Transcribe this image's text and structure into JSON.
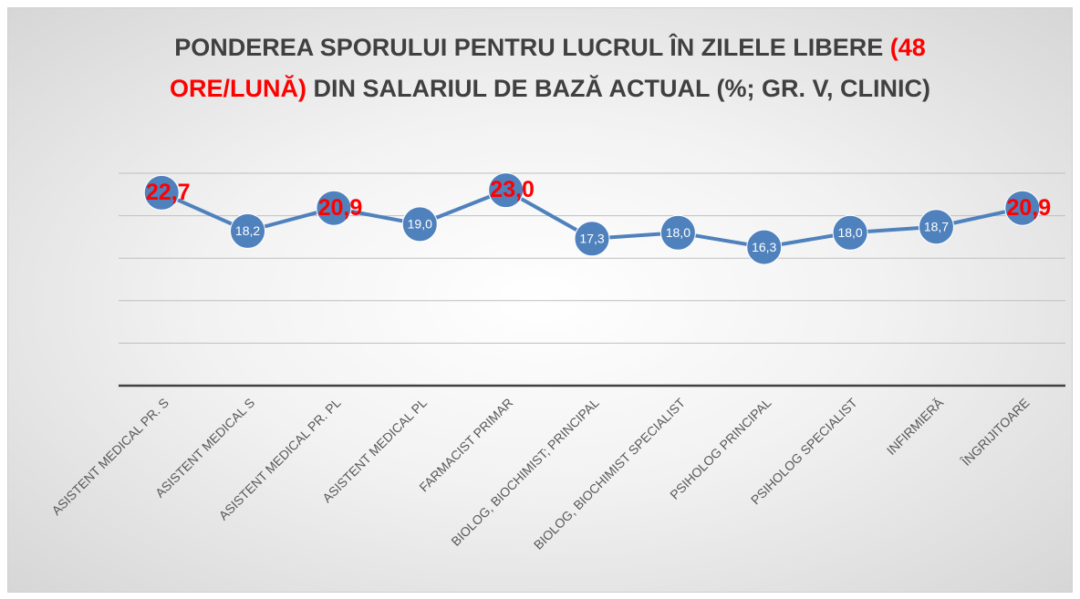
{
  "chart_data": {
    "type": "line",
    "title_parts": [
      {
        "text": "PONDEREA SPORULUI PENTRU LUCRUL ÎN ZILELE LIBERE ",
        "color": "#404040"
      },
      {
        "text": "(48 ORE/LUNĂ)",
        "color": "#ff0000"
      },
      {
        "text": " DIN SALARIUL DE BAZĂ ACTUAL (%; GR. V, CLINIC)",
        "color": "#404040"
      }
    ],
    "categories": [
      "ASISTENT MEDICAL PR. S",
      "ASISTENT MEDICAL S",
      "ASISTENT MEDICAL PR. PL",
      "ASISTENT MEDICAL PL",
      "FARMACIST PRIMAR",
      "BIOLOG, BIOCHIMIST; PRINCIPAL",
      "BIOLOG, BIOCHIMIST SPECIALIST",
      "PSIHOLOG PRINCIPAL",
      "PSIHOLOG SPECIALIST",
      "INFIRMIERĂ",
      "ÎNGRIJITOARE"
    ],
    "values": [
      22.7,
      18.2,
      20.9,
      19.0,
      23.0,
      17.3,
      18.0,
      16.3,
      18.0,
      18.7,
      20.9
    ],
    "value_labels": [
      "22,7",
      "18,2",
      "20,9",
      "19,0",
      "23,0",
      "17,3",
      "18,0",
      "16,3",
      "18,0",
      "18,7",
      "20,9"
    ],
    "value_label_colors": [
      "#ff0000",
      "#ffffff",
      "#ff0000",
      "#ffffff",
      "#ff0000",
      "#ffffff",
      "#ffffff",
      "#ffffff",
      "#ffffff",
      "#ffffff",
      "#ff0000"
    ],
    "color": "#4f81bd",
    "ylim": [
      0,
      25
    ],
    "yticks": [
      0,
      5,
      10,
      15,
      20,
      25
    ],
    "grid": true
  }
}
